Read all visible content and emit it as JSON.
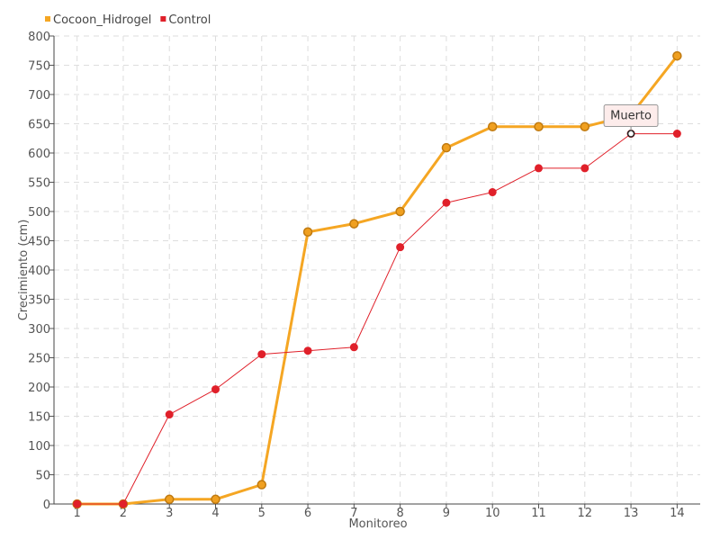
{
  "chart_data": {
    "type": "line",
    "title": "",
    "xlabel": "Monitoreo",
    "ylabel": "Crecimiento (cm)",
    "x": [
      1,
      2,
      3,
      4,
      5,
      6,
      7,
      8,
      9,
      10,
      11,
      12,
      13,
      14
    ],
    "ylim": [
      0,
      800
    ],
    "yticks": [
      0,
      50,
      100,
      150,
      200,
      250,
      300,
      350,
      400,
      450,
      500,
      550,
      600,
      650,
      700,
      750,
      800
    ],
    "grid": true,
    "legend_position": "top-left",
    "series": [
      {
        "name": "Cocoon_Hidrogel",
        "color": "#f5a623",
        "values": [
          0,
          0,
          8,
          8,
          33,
          465,
          479,
          500,
          609,
          645,
          645,
          645,
          665,
          766
        ]
      },
      {
        "name": "Control",
        "color": "#e0202a",
        "values": [
          0,
          0,
          153,
          196,
          256,
          262,
          268,
          439,
          515,
          533,
          574,
          574,
          633,
          633
        ]
      }
    ],
    "annotations": [
      {
        "text": "Muerto",
        "series": "Control",
        "x": 13,
        "y": 633
      }
    ]
  }
}
